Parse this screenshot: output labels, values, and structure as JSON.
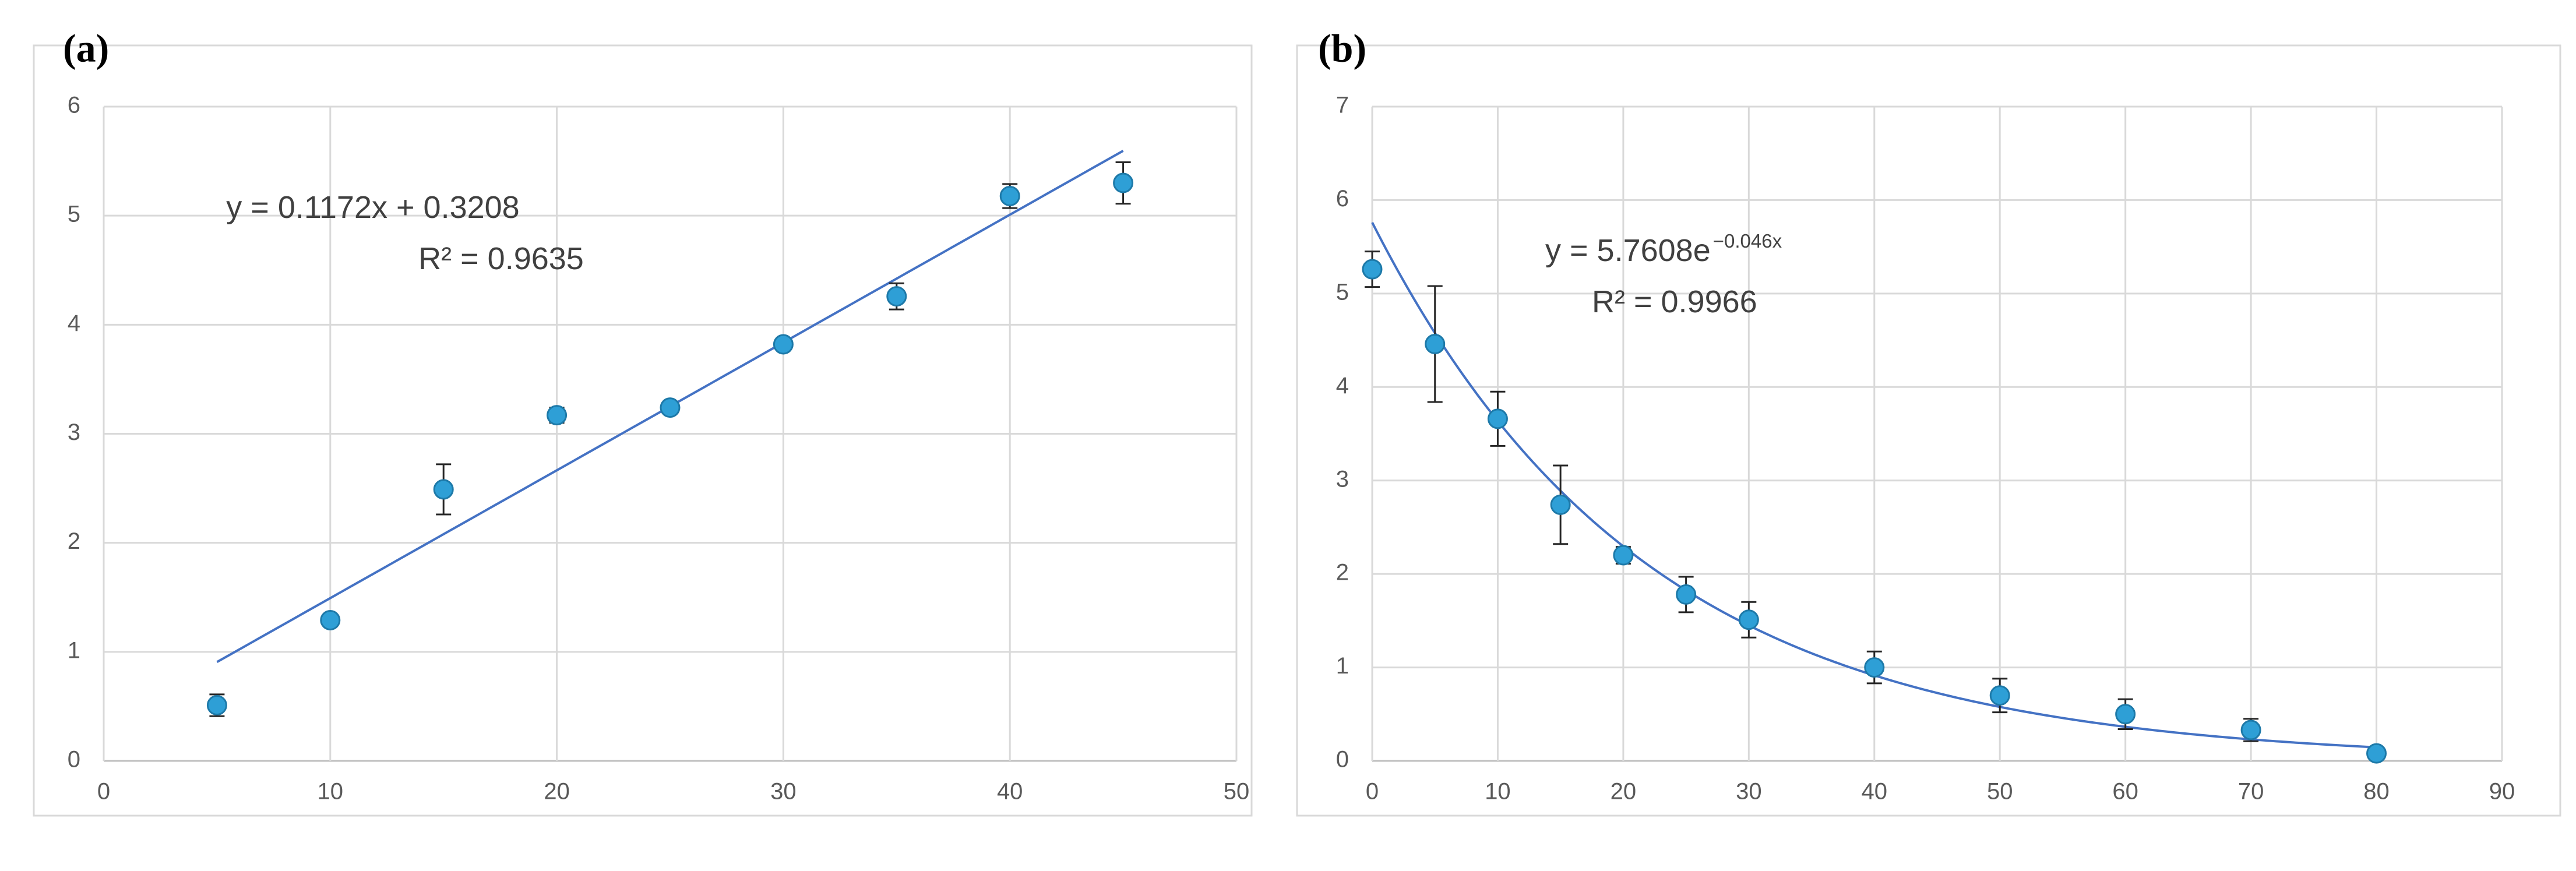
{
  "chart_data": [
    {
      "panel_label": "(a)",
      "type": "scatter",
      "x": [
        5,
        10,
        15,
        20,
        25,
        30,
        35,
        40,
        45
      ],
      "y": [
        0.51,
        1.29,
        2.49,
        3.17,
        3.24,
        3.82,
        4.26,
        5.18,
        5.3
      ],
      "error": [
        0.1,
        0.05,
        0.23,
        0.07,
        0.05,
        0.05,
        0.12,
        0.11,
        0.19
      ],
      "xlim": [
        0,
        50
      ],
      "ylim": [
        0,
        6
      ],
      "xticks": [
        0,
        10,
        20,
        30,
        40,
        50
      ],
      "yticks": [
        0,
        1,
        2,
        3,
        4,
        5,
        6
      ],
      "grid": true,
      "trendline": {
        "kind": "linear",
        "slope": 0.1172,
        "intercept": 0.3208,
        "x_start": 5,
        "x_end": 45
      },
      "equation": "y = 0.1172x + 0.3208",
      "r_squared": "R² = 0.9635"
    },
    {
      "panel_label": "(b)",
      "type": "scatter",
      "x": [
        0,
        5,
        10,
        15,
        20,
        25,
        30,
        40,
        50,
        60,
        70,
        80
      ],
      "y": [
        5.26,
        4.46,
        3.66,
        2.74,
        2.2,
        1.78,
        1.51,
        1.0,
        0.7,
        0.5,
        0.33,
        0.08
      ],
      "error": [
        0.19,
        0.62,
        0.29,
        0.42,
        0.09,
        0.19,
        0.19,
        0.17,
        0.18,
        0.16,
        0.12,
        0.03
      ],
      "xlim": [
        0,
        90
      ],
      "ylim": [
        0,
        7
      ],
      "xticks": [
        0,
        10,
        20,
        30,
        40,
        50,
        60,
        70,
        80,
        90
      ],
      "yticks": [
        0,
        1,
        2,
        3,
        4,
        5,
        6,
        7
      ],
      "grid": true,
      "trendline": {
        "kind": "exponential",
        "a": 5.7608,
        "b": -0.046,
        "x_start": 0,
        "x_end": 80
      },
      "equation_base": "y = 5.7608e",
      "equation_exponent": "−0.046x",
      "r_squared": "R² = 0.9966"
    }
  ],
  "colors": {
    "marker": "#2e9fd6",
    "trendline": "#4472c4",
    "grid": "#d9d9d9",
    "tick_text": "#595959",
    "equation_text": "#404040"
  }
}
